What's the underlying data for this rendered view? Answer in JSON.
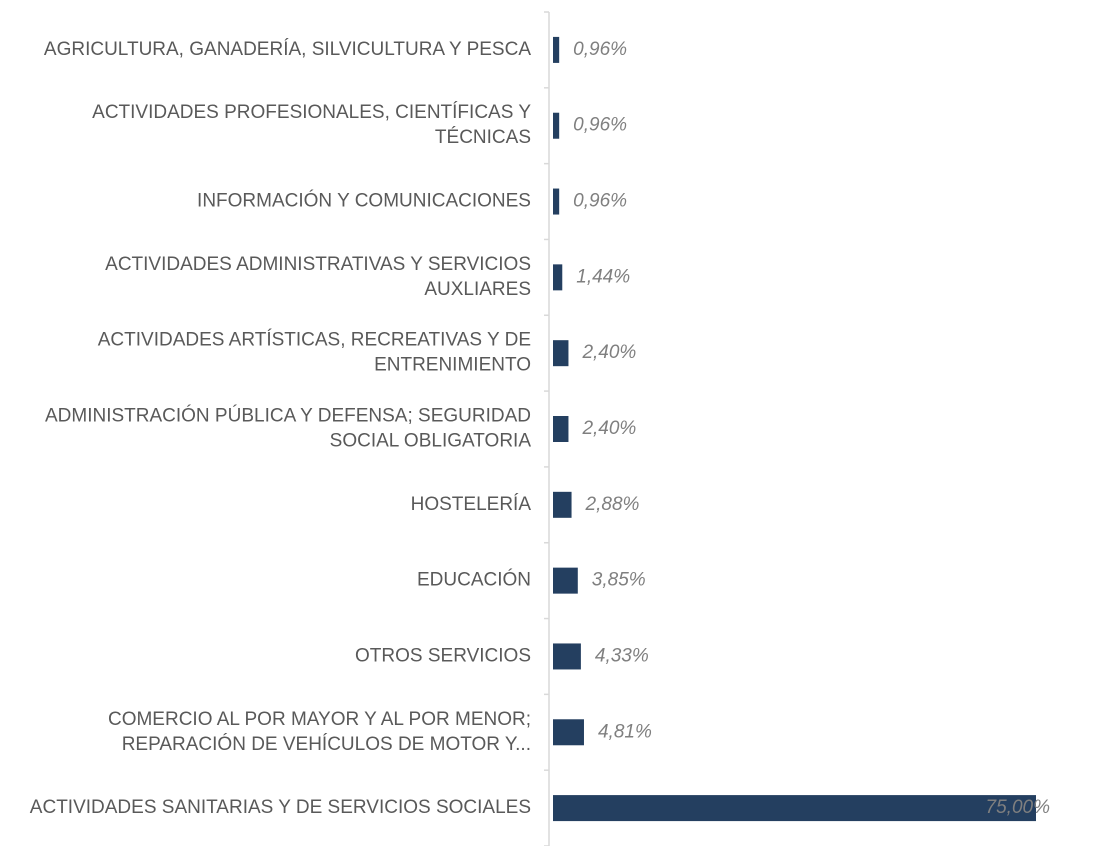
{
  "chart_data": {
    "type": "bar",
    "orientation": "horizontal",
    "color": "#243f60",
    "categories": [
      [
        "AGRICULTURA, GANADERÍA, SILVICULTURA Y PESCA"
      ],
      [
        "ACTIVIDADES PROFESIONALES, CIENTÍFICAS Y",
        "TÉCNICAS"
      ],
      [
        "INFORMACIÓN Y COMUNICACIONES"
      ],
      [
        "ACTIVIDADES ADMINISTRATIVAS Y SERVICIOS",
        "AUXLIARES"
      ],
      [
        "ACTIVIDADES ARTÍSTICAS, RECREATIVAS Y DE",
        "ENTRENIMIENTO"
      ],
      [
        "ADMINISTRACIÓN PÚBLICA Y DEFENSA; SEGURIDAD",
        "SOCIAL OBLIGATORIA"
      ],
      [
        "HOSTELERÍA"
      ],
      [
        "EDUCACIÓN"
      ],
      [
        "OTROS SERVICIOS"
      ],
      [
        "COMERCIO AL POR MAYOR Y AL POR MENOR;",
        "REPARACIÓN DE VEHÍCULOS DE MOTOR Y..."
      ],
      [
        "ACTIVIDADES SANITARIAS Y DE SERVICIOS SOCIALES"
      ]
    ],
    "values": [
      0.96,
      0.96,
      0.96,
      1.44,
      2.4,
      2.4,
      2.88,
      3.85,
      4.33,
      4.81,
      75
    ],
    "value_labels": [
      "0,96%",
      "0,96%",
      "0,96%",
      "1,44%",
      "2,40%",
      "2,40%",
      "2,88%",
      "3,85%",
      "4,33%",
      "4,81%",
      "75,00%"
    ]
  }
}
